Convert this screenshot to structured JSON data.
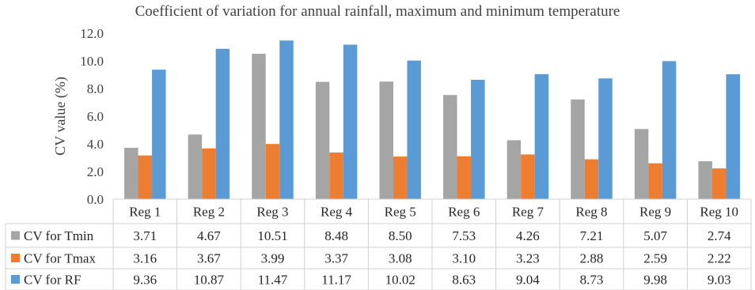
{
  "chart_data": {
    "type": "bar",
    "title": "Coefficient of variation for annual rainfall, maximum  and minimum  temperature",
    "ylabel": "CV value (%)",
    "xlabel": "",
    "ylim": [
      0,
      12
    ],
    "yticks": [
      "0.0",
      "2.0",
      "4.0",
      "6.0",
      "8.0",
      "10.0",
      "12.0"
    ],
    "grid": false,
    "legend": "in data table below chart",
    "categories": [
      "Reg 1",
      "Reg 2",
      "Reg 3",
      "Reg 4",
      "Reg 5",
      "Reg 6",
      "Reg 7",
      "Reg 8",
      "Reg 9",
      "Reg 10"
    ],
    "series": [
      {
        "name": "CV for Tmin",
        "color": "#a5a5a5",
        "values": [
          3.71,
          4.67,
          10.51,
          8.48,
          8.5,
          7.53,
          4.26,
          7.21,
          5.07,
          2.74
        ],
        "labels": [
          "3.71",
          "4.67",
          "10.51",
          "8.48",
          "8.50",
          "7.53",
          "4.26",
          "7.21",
          "5.07",
          "2.74"
        ]
      },
      {
        "name": "CV for Tmax",
        "color": "#ed7d31",
        "values": [
          3.16,
          3.67,
          3.99,
          3.37,
          3.08,
          3.1,
          3.23,
          2.88,
          2.59,
          2.22
        ],
        "labels": [
          "3.16",
          "3.67",
          "3.99",
          "3.37",
          "3.08",
          "3.10",
          "3.23",
          "2.88",
          "2.59",
          "2.22"
        ]
      },
      {
        "name": "CV for RF",
        "color": "#5b9bd5",
        "values": [
          9.36,
          10.87,
          11.47,
          11.17,
          10.02,
          8.63,
          9.04,
          8.73,
          9.98,
          9.03
        ],
        "labels": [
          "9.36",
          "10.87",
          "11.47",
          "11.17",
          "10.02",
          "8.63",
          "9.04",
          "8.73",
          "9.98",
          "9.03"
        ]
      }
    ]
  }
}
